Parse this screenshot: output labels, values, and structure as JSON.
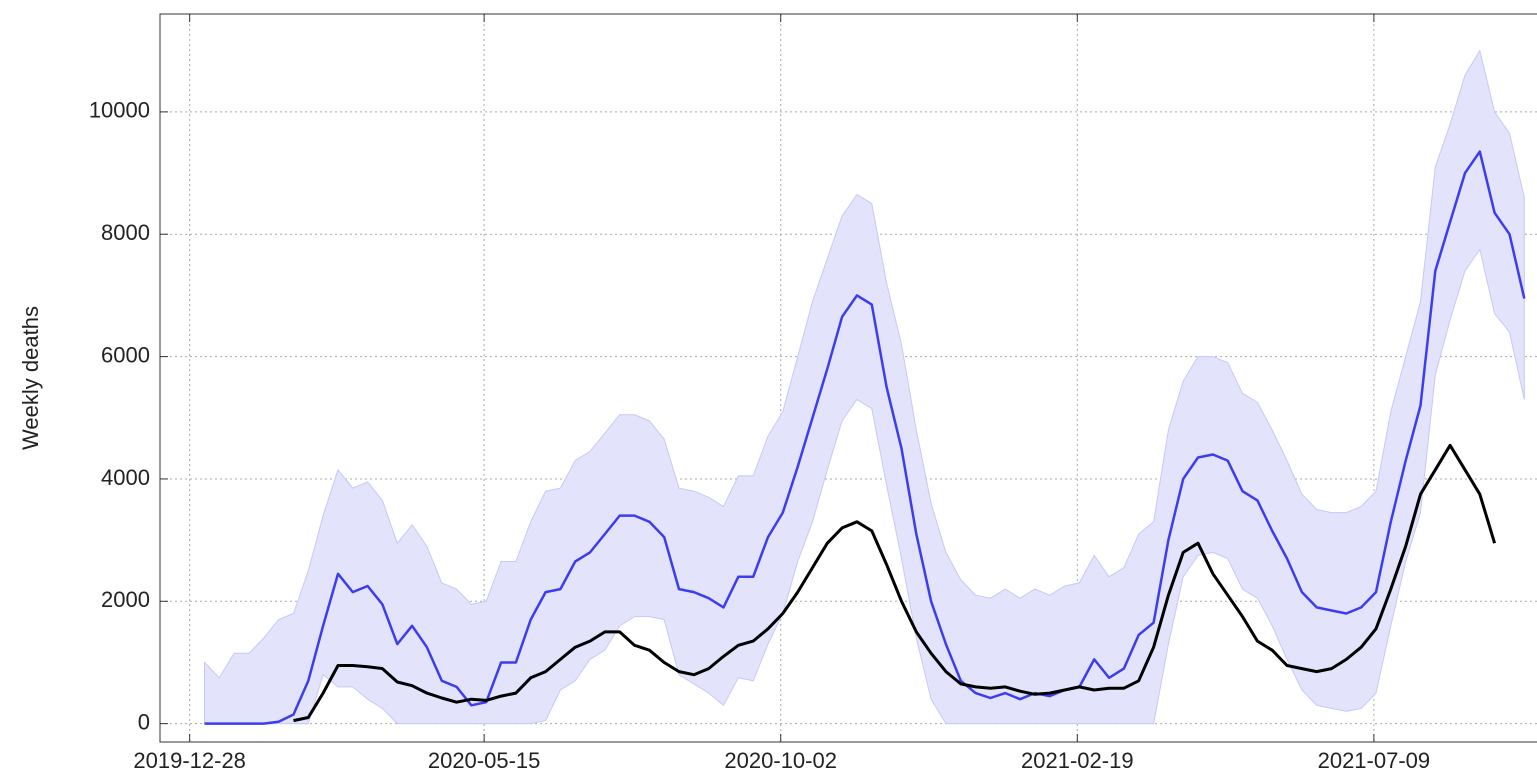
{
  "chart_data": {
    "type": "line",
    "y_label": "Weekly deaths",
    "x": [
      "2020-01-04",
      "2020-01-11",
      "2020-01-18",
      "2020-01-25",
      "2020-02-01",
      "2020-02-08",
      "2020-02-15",
      "2020-02-22",
      "2020-02-29",
      "2020-03-07",
      "2020-03-14",
      "2020-03-21",
      "2020-03-28",
      "2020-04-04",
      "2020-04-11",
      "2020-04-18",
      "2020-04-25",
      "2020-05-02",
      "2020-05-09",
      "2020-05-16",
      "2020-05-23",
      "2020-05-30",
      "2020-06-06",
      "2020-06-13",
      "2020-06-20",
      "2020-06-27",
      "2020-07-04",
      "2020-07-11",
      "2020-07-18",
      "2020-07-25",
      "2020-08-01",
      "2020-08-08",
      "2020-08-15",
      "2020-08-22",
      "2020-08-29",
      "2020-09-05",
      "2020-09-12",
      "2020-09-19",
      "2020-09-26",
      "2020-10-03",
      "2020-10-10",
      "2020-10-17",
      "2020-10-24",
      "2020-10-31",
      "2020-11-07",
      "2020-11-14",
      "2020-11-21",
      "2020-11-28",
      "2020-12-05",
      "2020-12-12",
      "2020-12-19",
      "2020-12-26",
      "2021-01-02",
      "2021-01-09",
      "2021-01-16",
      "2021-01-23",
      "2021-01-30",
      "2021-02-06",
      "2021-02-13",
      "2021-02-20",
      "2021-02-27",
      "2021-03-06",
      "2021-03-13",
      "2021-03-20",
      "2021-03-27",
      "2021-04-03",
      "2021-04-10",
      "2021-04-17",
      "2021-04-24",
      "2021-05-01",
      "2021-05-08",
      "2021-05-15",
      "2021-05-22",
      "2021-05-29",
      "2021-06-05",
      "2021-06-12",
      "2021-06-19",
      "2021-06-26",
      "2021-07-03",
      "2021-07-10",
      "2021-07-17",
      "2021-07-24",
      "2021-07-31",
      "2021-08-07",
      "2021-08-14",
      "2021-08-21",
      "2021-08-28",
      "2021-09-04",
      "2021-09-11",
      "2021-09-18"
    ],
    "band": {
      "color": "#e3e3fc",
      "edge": "#c8c8f8",
      "lower": [
        0,
        0,
        0,
        0,
        0,
        0,
        0,
        0,
        800,
        600,
        600,
        400,
        250,
        0,
        0,
        0,
        0,
        0,
        0,
        0,
        0,
        0,
        0,
        50,
        550,
        700,
        1050,
        1200,
        1600,
        1750,
        1750,
        1700,
        800,
        650,
        500,
        300,
        750,
        700,
        1300,
        1800,
        2650,
        3300,
        4150,
        4950,
        5300,
        5150,
        3900,
        2700,
        1400,
        400,
        0,
        0,
        0,
        0,
        0,
        0,
        0,
        0,
        0,
        0,
        0,
        0,
        0,
        0,
        0,
        1300,
        2400,
        2750,
        2800,
        2700,
        2200,
        2050,
        1600,
        1050,
        550,
        300,
        250,
        200,
        250,
        500,
        1600,
        2650,
        3450,
        5700,
        6600,
        7400,
        7750,
        6700,
        6400,
        5300
      ],
      "upper": [
        1000,
        750,
        1150,
        1150,
        1400,
        1700,
        1800,
        2500,
        3400,
        4150,
        3850,
        3950,
        3650,
        2950,
        3250,
        2900,
        2300,
        2200,
        1950,
        2000,
        2650,
        2650,
        3300,
        3800,
        3850,
        4300,
        4450,
        4750,
        5050,
        5050,
        4950,
        4650,
        3850,
        3800,
        3700,
        3550,
        4050,
        4050,
        4700,
        5100,
        6000,
        6900,
        7600,
        8300,
        8650,
        8500,
        7200,
        6200,
        4800,
        3600,
        2800,
        2350,
        2100,
        2050,
        2200,
        2050,
        2200,
        2100,
        2250,
        2300,
        2750,
        2400,
        2550,
        3100,
        3300,
        4800,
        5600,
        6000,
        6000,
        5900,
        5400,
        5250,
        4800,
        4300,
        3750,
        3500,
        3450,
        3450,
        3550,
        3800,
        5100,
        6000,
        6900,
        9100,
        9800,
        10600,
        11000,
        10000,
        9650,
        8600
      ]
    },
    "series": [
      {
        "color": "#3c3cf0",
        "width": 2.5,
        "values": [
          0,
          0,
          0,
          0,
          0,
          30,
          150,
          700,
          1600,
          2450,
          2150,
          2250,
          1950,
          1300,
          1600,
          1250,
          700,
          600,
          300,
          350,
          1000,
          1000,
          1700,
          2150,
          2200,
          2650,
          2800,
          3100,
          3400,
          3400,
          3300,
          3050,
          2200,
          2150,
          2050,
          1900,
          2400,
          2400,
          3050,
          3450,
          4200,
          5000,
          5800,
          6650,
          7000,
          6850,
          5500,
          4500,
          3100,
          2000,
          1300,
          700,
          500,
          420,
          500,
          400,
          500,
          450,
          550,
          600,
          1050,
          750,
          900,
          1450,
          1650,
          3000,
          4000,
          4350,
          4400,
          4300,
          3800,
          3650,
          3150,
          2700,
          2150,
          1900,
          1850,
          1800,
          1900,
          2150,
          3300,
          4300,
          5200,
          7400,
          8200,
          9000,
          9350,
          8350,
          8000,
          6950
        ]
      },
      {
        "color": "#000000",
        "width": 3,
        "values": [
          null,
          null,
          null,
          null,
          null,
          null,
          50,
          100,
          500,
          950,
          950,
          930,
          900,
          680,
          620,
          500,
          420,
          350,
          400,
          380,
          450,
          500,
          750,
          850,
          1050,
          1250,
          1350,
          1500,
          1500,
          1280,
          1200,
          1000,
          850,
          800,
          900,
          1100,
          1280,
          1350,
          1550,
          1800,
          2150,
          2550,
          2950,
          3200,
          3300,
          3150,
          2600,
          2000,
          1500,
          1150,
          850,
          650,
          600,
          580,
          600,
          530,
          480,
          500,
          550,
          600,
          550,
          580,
          580,
          700,
          1250,
          2100,
          2800,
          2950,
          2450,
          2100,
          1750,
          1350,
          1200,
          950,
          900,
          850,
          900,
          1050,
          1250,
          1550,
          2200,
          2900,
          3750,
          4150,
          4550,
          4150,
          3750,
          2950,
          null,
          null
        ]
      }
    ],
    "xlim": [
      "2019-12-14",
      "2021-09-24"
    ],
    "xticks": [
      "2019-12-28",
      "2020-05-15",
      "2020-10-02",
      "2021-02-19",
      "2021-07-09"
    ],
    "ylim": [
      -300,
      11600
    ],
    "yticks": [
      0,
      2000,
      4000,
      6000,
      8000,
      10000
    ],
    "grid": true
  }
}
